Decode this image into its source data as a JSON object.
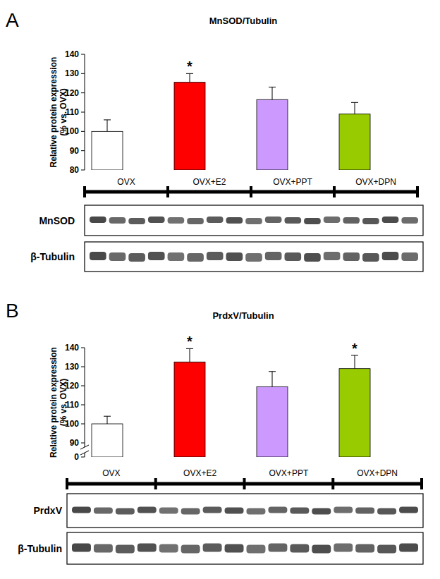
{
  "chart_data": [
    {
      "type": "bar",
      "panel": "A",
      "title": "MnSOD/Tubulin",
      "y_label": [
        "Relative protein expression",
        "(% vs. OVX)"
      ],
      "categories": [
        "OVX",
        "OVX+E2",
        "OVX+PPT",
        "OVX+DPN"
      ],
      "values": [
        100,
        125.5,
        116.5,
        109
      ],
      "errors": [
        6,
        4.5,
        6.5,
        6
      ],
      "significance": [
        null,
        "*",
        null,
        null
      ],
      "colors": [
        "#ffffff",
        "#ff0000",
        "#cc99ff",
        "#99cc00"
      ],
      "ylim": [
        80,
        140
      ],
      "yticks": [
        80,
        90,
        100,
        110,
        120,
        130,
        140
      ],
      "grid": false,
      "blots": [
        "MnSOD",
        "β-Tubulin"
      ]
    },
    {
      "type": "bar",
      "panel": "B",
      "title": "PrdxV/Tubulin",
      "y_label": [
        "Relative protein expression",
        "(% vs. OVX)"
      ],
      "categories": [
        "OVX",
        "OVX+E2",
        "OVX+PPT",
        "OVX+DPN"
      ],
      "values": [
        100,
        132.5,
        119.5,
        129
      ],
      "errors": [
        4,
        7,
        8,
        7
      ],
      "significance": [
        null,
        "*",
        null,
        "*"
      ],
      "colors": [
        "#ffffff",
        "#ff0000",
        "#cc99ff",
        "#99cc00"
      ],
      "ylim": [
        0,
        140
      ],
      "yticks": [
        0,
        90,
        100,
        110,
        120,
        130,
        140
      ],
      "grid": false,
      "blots": [
        "PrdxV",
        "β-Tubulin"
      ]
    }
  ]
}
